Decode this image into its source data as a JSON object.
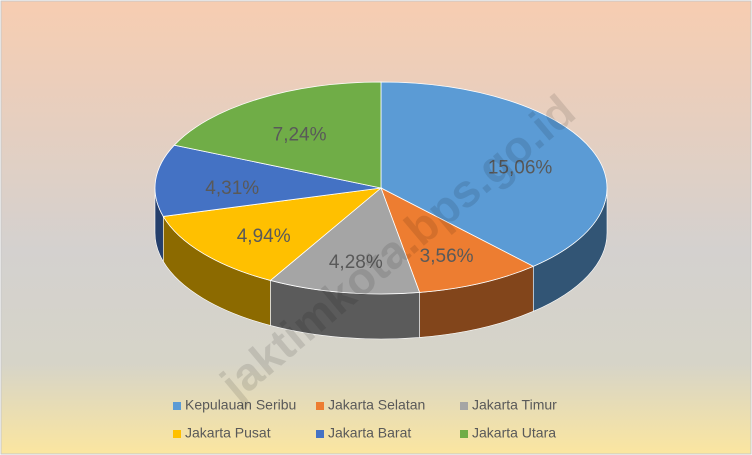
{
  "chart_data": {
    "type": "pie3d",
    "categories": [
      "Kepulauan Seribu",
      "Jakarta Selatan",
      "Jakarta Timur",
      "Jakarta Pusat",
      "Jakarta Barat",
      "Jakarta Utara"
    ],
    "values": [
      15.06,
      3.56,
      4.28,
      4.94,
      4.31,
      7.24
    ],
    "value_labels": [
      "15,06%",
      "3,56%",
      "4,28%",
      "4,94%",
      "4,31%",
      "7,24%"
    ],
    "colors": [
      "#5b9bd5",
      "#ed7d31",
      "#a5a5a5",
      "#ffc000",
      "#4472c4",
      "#70ad47"
    ],
    "legend": "bottom",
    "watermark": "jaktimkota.bps.go.id"
  }
}
